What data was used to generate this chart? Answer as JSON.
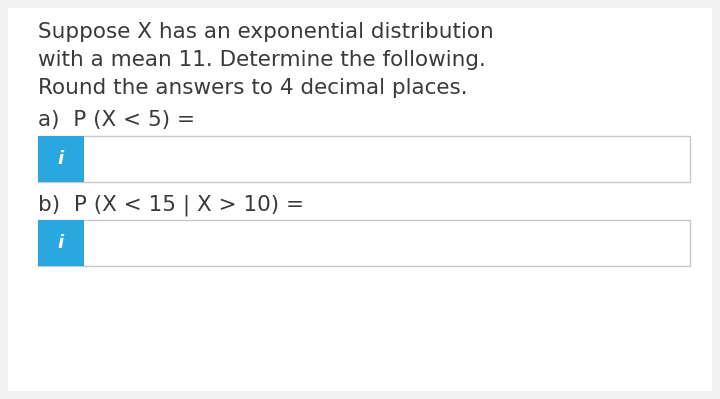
{
  "background_color": "#f2f2f2",
  "panel_color": "#ffffff",
  "title_lines": [
    "Suppose X has an exponential distribution",
    "with a mean 11. Determine the following.",
    "Round the answers to 4 decimal places."
  ],
  "part_a_label": "a)  P (X < 5) =",
  "part_b_label": "b)  P (X < 15 | X > 10) =",
  "box_bg_color": "#ffffff",
  "box_border_color": "#c8c8c8",
  "icon_bg_color": "#29a8e0",
  "icon_text": "i",
  "icon_text_color": "#ffffff",
  "text_color": "#3a3a3a",
  "font_size_title": 15.5,
  "font_size_label": 15.5,
  "font_size_icon": 13
}
